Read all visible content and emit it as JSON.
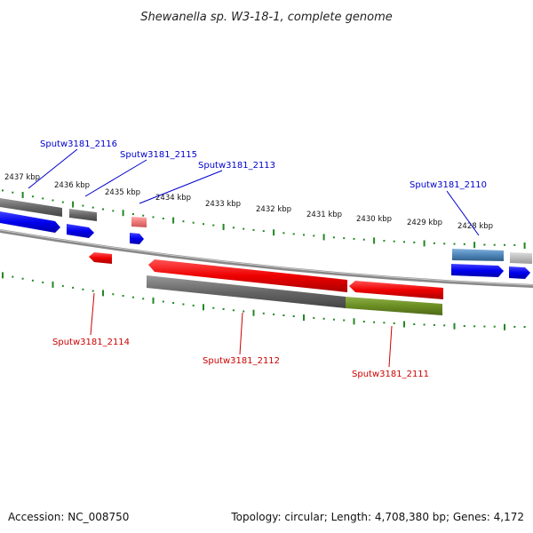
{
  "title": "Shewanella sp. W3-18-1, complete genome",
  "footer": {
    "accession": "Accession: NC_008750",
    "summary": "Topology: circular; Length: 4,708,380 bp; Genes: 4,172"
  },
  "colors": {
    "forward_label": "#0000cc",
    "reverse_label": "#cc0000",
    "forward_gene": "#0000ee",
    "reverse_gene": "#ee0000",
    "tick": "#228822",
    "backbone": "#888888",
    "gray_feature": "#666666",
    "blue_feature": "#4f86b8",
    "green_feature": "#6b8e23",
    "pink_feature": "#ee8888",
    "light_gray_feature": "#bbbbbb"
  },
  "chart_data": {
    "type": "genome_map",
    "ticks": [
      "2437 kbp",
      "2436 kbp",
      "2435 kbp",
      "2434 kbp",
      "2433 kbp",
      "2432 kbp",
      "2431 kbp",
      "2430 kbp",
      "2429 kbp",
      "2428 kbp"
    ],
    "forward_labels": [
      "Sputw3181_2116",
      "Sputw3181_2115",
      "Sputw3181_2113",
      "Sputw3181_2110"
    ],
    "reverse_labels": [
      "Sputw3181_2114",
      "Sputw3181_2112",
      "Sputw3181_2111"
    ]
  }
}
